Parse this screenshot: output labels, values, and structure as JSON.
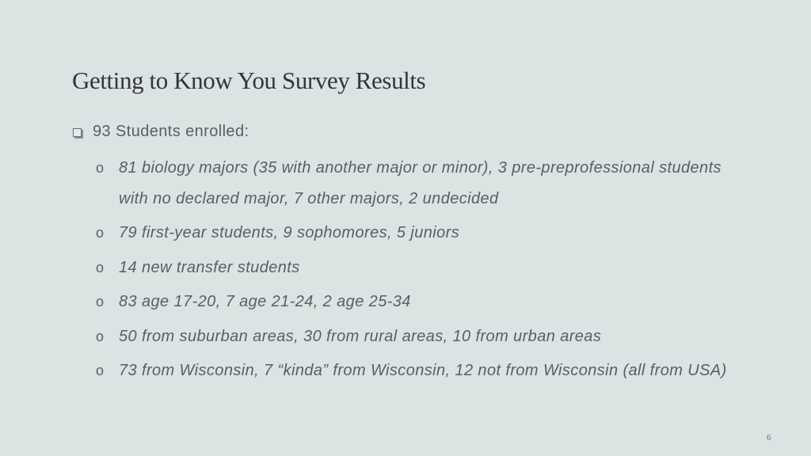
{
  "slide": {
    "title": "Getting to Know You Survey Results",
    "main_point": "93 Students enrolled:",
    "bullet_marker": "o",
    "sub_points": [
      "81 biology majors (35 with another major or minor), 3 pre-preprofessional students with no declared major, 7 other majors, 2 undecided",
      "79 first-year students, 9 sophomores, 5 juniors",
      "14 new transfer students",
      "83 age 17-20, 7 age 21-24, 2 age 25-34",
      "50 from suburban areas, 30 from rural areas, 10 from urban areas",
      "73 from Wisconsin, 7 “kinda” from Wisconsin, 12 not from Wisconsin (all from USA)"
    ],
    "page_number": "6"
  },
  "icons": {
    "main_bullet": "checkbox-square-icon"
  },
  "colors": {
    "background": "#dce3e3",
    "title": "#33363a",
    "body_text": "#5a5f63"
  }
}
